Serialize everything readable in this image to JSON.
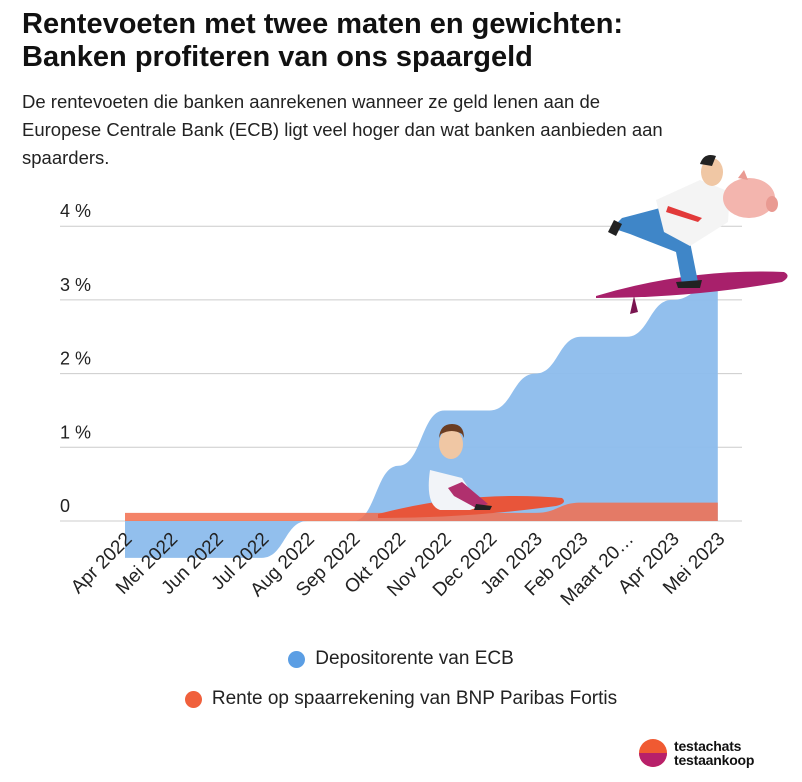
{
  "title_line1": "Rentevoeten met twee maten en gewichten:",
  "title_line2": "Banken profiteren van ons spaargeld",
  "subtitle": "De rentevoeten die banken aanrekenen wanneer ze geld lenen aan de Europese Centrale Bank (ECB) ligt veel hoger dan wat banken aanbieden aan spaarders.",
  "brand": {
    "line1": "testachats",
    "line2": "testaankoop"
  },
  "colors": {
    "ecb": "#8cbcec",
    "ecb_legend": "#5b9ee4",
    "bnp": "#f26d4d",
    "bnp_legend": "#f0603c",
    "grid": "#cccccc"
  },
  "chart_data": {
    "type": "area",
    "title": "Rentevoeten met twee maten en gewichten: Banken profiteren van ons spaargeld",
    "xlabel": "",
    "ylabel": "",
    "ylim": [
      -0.05,
      4.2
    ],
    "categories": [
      "Apr 2022",
      "Mei 2022",
      "Jun 2022",
      "Jul 2022",
      "Aug 2022",
      "Sep 2022",
      "Okt 2022",
      "Nov 2022",
      "Dec 2022",
      "Jan 2023",
      "Feb 2023",
      "Maart 20…",
      "Apr 2023",
      "Mei 2023"
    ],
    "y_ticks": [
      0,
      1,
      2,
      3,
      4
    ],
    "y_tick_labels": [
      "0",
      "1 %",
      "2 %",
      "3 %",
      "4 %"
    ],
    "series": [
      {
        "name": "Depositorente van ECB",
        "values": [
          -0.5,
          -0.5,
          -0.5,
          -0.5,
          0,
          0,
          0.75,
          1.5,
          1.5,
          2.0,
          2.5,
          2.5,
          3.0,
          3.25
        ]
      },
      {
        "name": "Rente op spaarrekening van BNP Paribas Fortis",
        "values": [
          0.11,
          0.11,
          0.11,
          0.11,
          0.11,
          0.11,
          0.11,
          0.11,
          0.11,
          0.11,
          0.25,
          0.25,
          0.25,
          0.25
        ]
      }
    ],
    "legend": [
      "Depositorente van ECB",
      "Rente op spaarrekening van BNP Paribas Fortis"
    ],
    "legend_position": "bottom",
    "grid": true
  }
}
